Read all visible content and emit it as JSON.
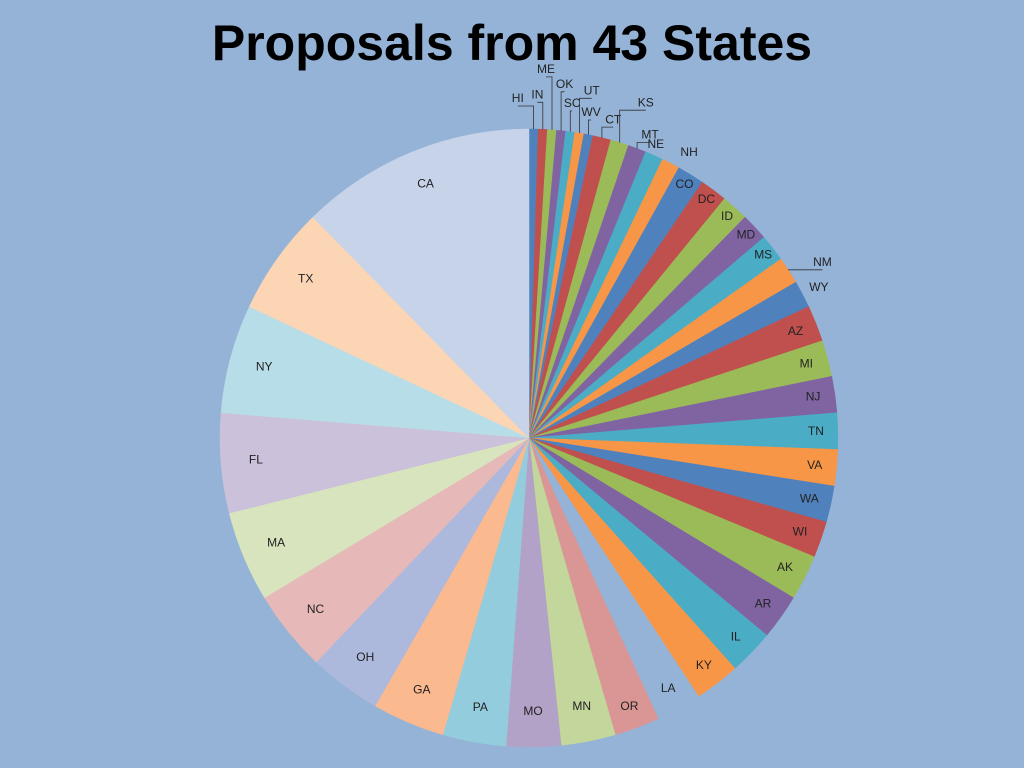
{
  "slide": {
    "title": "Proposals from 43 States"
  },
  "chart_data": {
    "type": "pie",
    "title": "Proposals from 43 States",
    "start_angle_deg": 0,
    "direction": "clockwise",
    "legend": "none",
    "data_labels": "category names",
    "slices": [
      {
        "label": "HI",
        "value": 1,
        "color": "#4f81bd"
      },
      {
        "label": "IN",
        "value": 1,
        "color": "#c0504d"
      },
      {
        "label": "ME",
        "value": 1,
        "color": "#9bbb59"
      },
      {
        "label": "OK",
        "value": 1,
        "color": "#8064a2"
      },
      {
        "label": "SC",
        "value": 1,
        "color": "#4bacc6"
      },
      {
        "label": "UT",
        "value": 1,
        "color": "#f79646"
      },
      {
        "label": "WV",
        "value": 1,
        "color": "#4f81bd"
      },
      {
        "label": "CT",
        "value": 2,
        "color": "#c0504d"
      },
      {
        "label": "KS",
        "value": 2,
        "color": "#9bbb59"
      },
      {
        "label": "MT",
        "value": 2,
        "color": "#8064a2"
      },
      {
        "label": "NE",
        "value": 2,
        "color": "#4bacc6"
      },
      {
        "label": "NH",
        "value": 2,
        "color": "#f79646"
      },
      {
        "label": "CO",
        "value": 3,
        "color": "#4f81bd"
      },
      {
        "label": "DC",
        "value": 3,
        "color": "#c0504d"
      },
      {
        "label": "ID",
        "value": 3,
        "color": "#9bbb59"
      },
      {
        "label": "MD",
        "value": 3,
        "color": "#8064a2"
      },
      {
        "label": "MS",
        "value": 3,
        "color": "#4bacc6"
      },
      {
        "label": "NM",
        "value": 3,
        "color": "#f79646"
      },
      {
        "label": "WY",
        "value": 3,
        "color": "#4f81bd"
      },
      {
        "label": "AZ",
        "value": 4,
        "color": "#c0504d"
      },
      {
        "label": "MI",
        "value": 4,
        "color": "#9bbb59"
      },
      {
        "label": "NJ",
        "value": 4,
        "color": "#8064a2"
      },
      {
        "label": "TN",
        "value": 4,
        "color": "#4bacc6"
      },
      {
        "label": "VA",
        "value": 4,
        "color": "#f79646"
      },
      {
        "label": "WA",
        "value": 4,
        "color": "#4f81bd"
      },
      {
        "label": "WI",
        "value": 4,
        "color": "#c0504d"
      },
      {
        "label": "AK",
        "value": 5,
        "color": "#9bbb59"
      },
      {
        "label": "AR",
        "value": 5,
        "color": "#8064a2"
      },
      {
        "label": "IL",
        "value": 5,
        "color": "#4bacc6"
      },
      {
        "label": "KY",
        "value": 5,
        "color": "#f79646"
      },
      {
        "label": "LA",
        "value": 5,
        "color": "#95b3d7"
      },
      {
        "label": "OR",
        "value": 5,
        "color": "#d99694"
      },
      {
        "label": "MN",
        "value": 6,
        "color": "#c3d69b"
      },
      {
        "label": "MO",
        "value": 6,
        "color": "#b2a2c7"
      },
      {
        "label": "PA",
        "value": 7,
        "color": "#93cddd"
      },
      {
        "label": "GA",
        "value": 8,
        "color": "#fab98f"
      },
      {
        "label": "OH",
        "value": 8,
        "color": "#adb9dc"
      },
      {
        "label": "NC",
        "value": 9,
        "color": "#e6b9b8"
      },
      {
        "label": "MA",
        "value": 10,
        "color": "#d7e4bd"
      },
      {
        "label": "FL",
        "value": 11,
        "color": "#ccc1da"
      },
      {
        "label": "NY",
        "value": 12,
        "color": "#b7dde8"
      },
      {
        "label": "TX",
        "value": 12,
        "color": "#fcd5b5"
      },
      {
        "label": "CA",
        "value": 26,
        "color": "#c6d3e8"
      }
    ]
  }
}
